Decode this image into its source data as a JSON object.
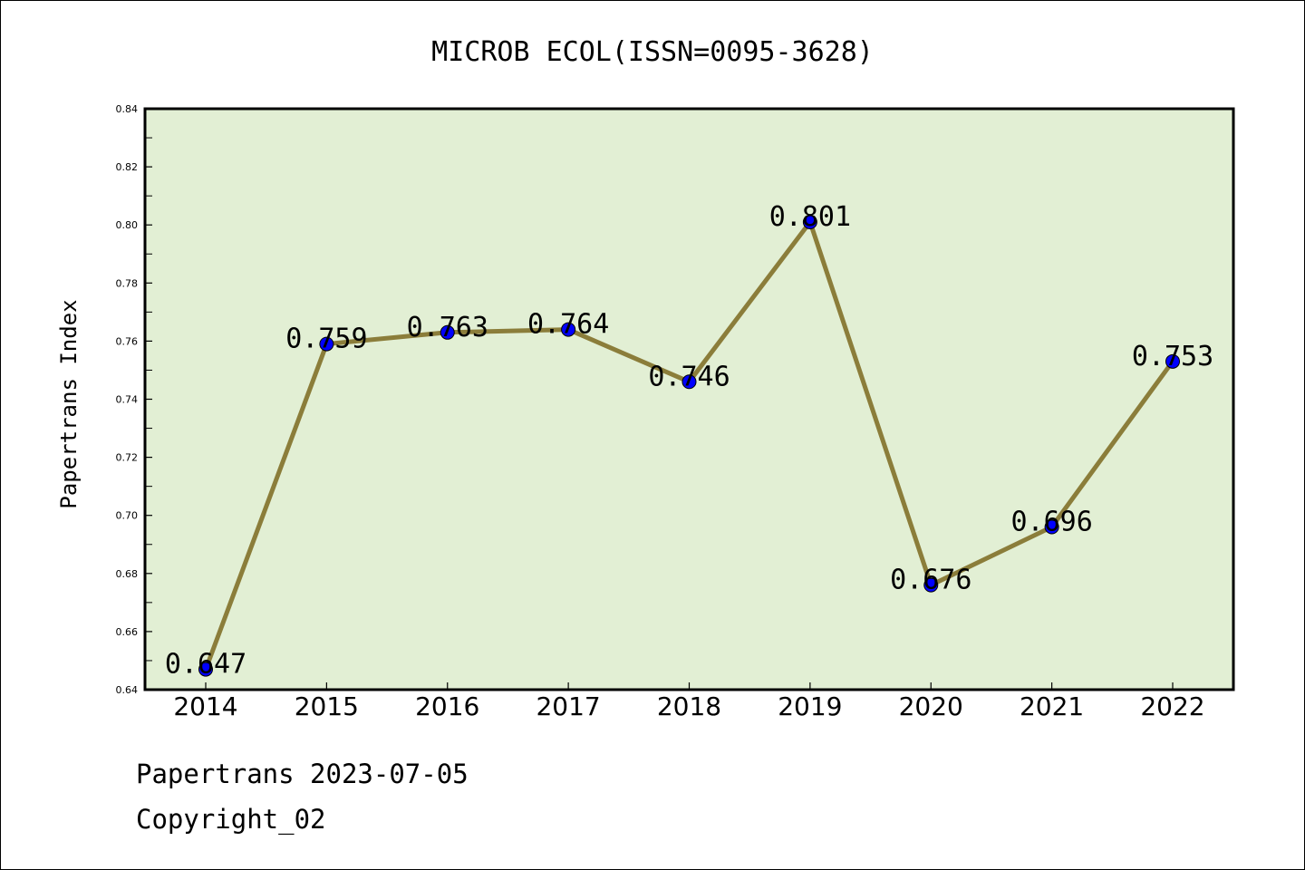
{
  "chart_data": {
    "type": "line",
    "title": "MICROB ECOL(ISSN=0095-3628)",
    "ylabel": "Papertrans Index",
    "xlabel": "",
    "categories": [
      "2014",
      "2015",
      "2016",
      "2017",
      "2018",
      "2019",
      "2020",
      "2021",
      "2022"
    ],
    "values": [
      0.647,
      0.759,
      0.763,
      0.764,
      0.746,
      0.801,
      0.676,
      0.696,
      0.753
    ],
    "data_labels": [
      "0.647",
      "0.759",
      "0.763",
      "0.764",
      "0.746",
      "0.801",
      "0.676",
      "0.696",
      "0.753"
    ],
    "ylim": [
      0.64,
      0.84
    ],
    "yticks": [
      "0.64",
      "0.66",
      "0.68",
      "0.70",
      "0.72",
      "0.74",
      "0.76",
      "0.78",
      "0.80",
      "0.82",
      "0.84"
    ],
    "grid": false,
    "legend": "none",
    "colors": {
      "line": "#8b7d3a",
      "marker": "#0000ff",
      "plot_background": "#e2efd4"
    }
  },
  "footer": {
    "line1": "Papertrans 2023-07-05",
    "line2": "Copyright_02"
  }
}
